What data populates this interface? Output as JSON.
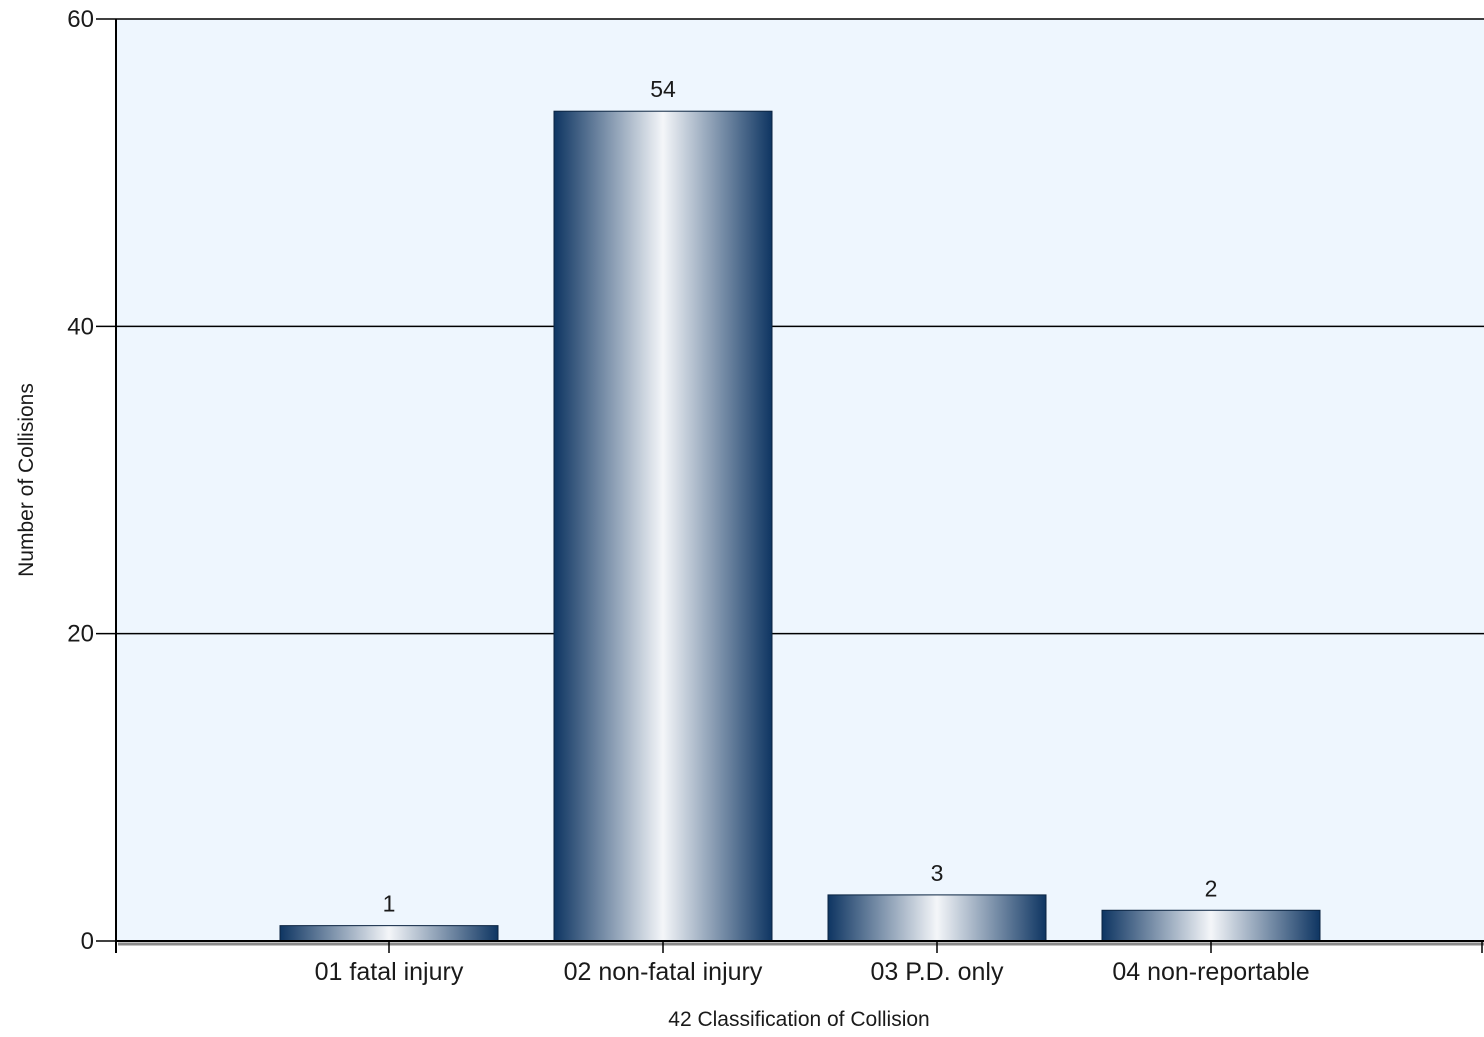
{
  "chart_data": {
    "type": "bar",
    "categories": [
      "01 fatal injury",
      "02 non-fatal injury",
      "03 P.D. only",
      "04 non-reportable"
    ],
    "values": [
      1,
      54,
      3,
      2
    ],
    "data_labels": [
      "1",
      "54",
      "3",
      "2"
    ],
    "title": "",
    "xlabel": "42 Classification of Collision",
    "ylabel": "Number of Collisions",
    "ylim": [
      0,
      60
    ],
    "yticks": [
      0,
      20,
      40,
      60
    ],
    "ytick_labels": [
      "0",
      "20",
      "40",
      "60"
    ],
    "grid": true,
    "legend": "none"
  },
  "colors": {
    "plot_background": "#eef6fe",
    "bar_dark": "#0e3562",
    "bar_light": "#f4f6f9",
    "gridline": "#000000",
    "axis": "#000000"
  }
}
